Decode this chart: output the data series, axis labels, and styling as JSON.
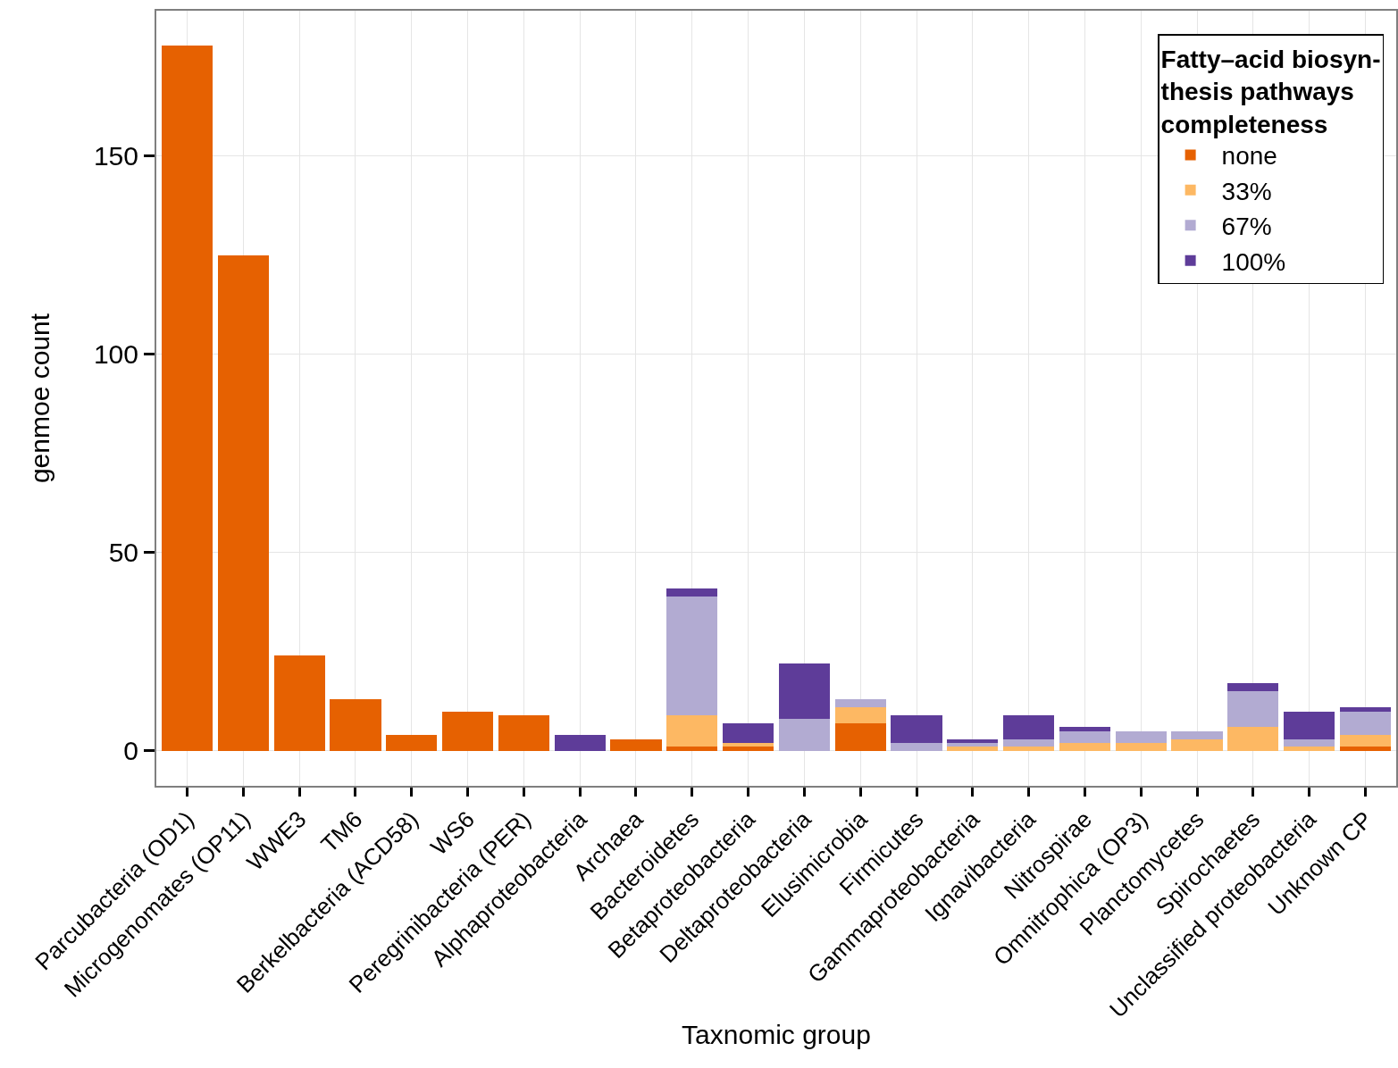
{
  "chart_data": {
    "type": "bar",
    "stacked": true,
    "xlabel": "Taxnomic group",
    "ylabel": "genmoe count",
    "legend_title": "Fatty–acid biosyn-\nthesis pathways\ncompleteness",
    "legend": "top right",
    "grid": true,
    "categories": [
      "Parcubacteria (OD1)",
      "Microgenomates (OP11)",
      "WWE3",
      "TM6",
      "Berkelbacteria (ACD58)",
      "WS6",
      "Peregrinibacteria (PER)",
      "Alphaproteobacteria",
      "Archaea",
      "Bacteroidetes",
      "Betaproteobacteria",
      "Deltaproteobacteria",
      "Elusimicrobia",
      "Firmicutes",
      "Gammaproteobacteria",
      "Ignavibacteria",
      "Nitrospirae",
      "Omnitrophica (OP3)",
      "Planctomycetes",
      "Spirochaetes",
      "Unclassified proteobacteria",
      "Unknown CP"
    ],
    "series": [
      {
        "name": "none",
        "color": "#e66101",
        "values": [
          178,
          125,
          24,
          13,
          4,
          10,
          9,
          0,
          3,
          1,
          1,
          0,
          7,
          0,
          0,
          0,
          0,
          0,
          0,
          0,
          0,
          1
        ]
      },
      {
        "name": "33%",
        "color": "#fdb863",
        "values": [
          0,
          0,
          0,
          0,
          0,
          0,
          0,
          0,
          0,
          8,
          1,
          0,
          4,
          0,
          1,
          1,
          2,
          2,
          3,
          6,
          1,
          3
        ]
      },
      {
        "name": "67%",
        "color": "#b2abd2",
        "values": [
          0,
          0,
          0,
          0,
          0,
          0,
          0,
          0,
          0,
          30,
          0,
          8,
          2,
          2,
          1,
          2,
          3,
          3,
          2,
          9,
          2,
          6
        ]
      },
      {
        "name": "100%",
        "color": "#5e3c99",
        "values": [
          0,
          0,
          0,
          0,
          0,
          0,
          0,
          4,
          0,
          2,
          5,
          14,
          0,
          7,
          1,
          6,
          1,
          0,
          0,
          2,
          7,
          1
        ]
      }
    ],
    "ylim": [
      -8.8,
      186.7
    ],
    "yticks": [
      0,
      50,
      100,
      150
    ]
  }
}
